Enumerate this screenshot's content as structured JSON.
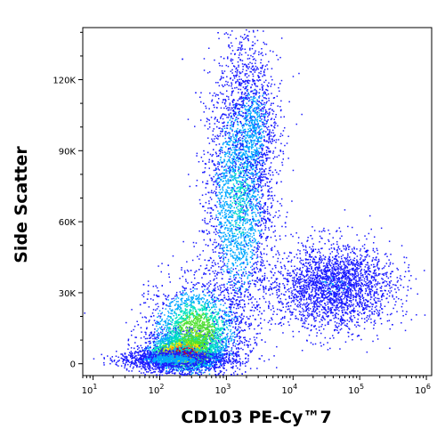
{
  "chart_data": {
    "type": "scatter",
    "style": "pseudocolor density dot plot",
    "xlabel": "CD103 PE-Cy™7",
    "ylabel": "Side Scatter",
    "x_scale": "log",
    "x_range": [
      7,
      1200000
    ],
    "y_scale": "linear",
    "y_range": [
      -5000,
      142000
    ],
    "x_ticks": [
      {
        "value": 10,
        "base": "10",
        "exp": "1"
      },
      {
        "value": 100,
        "base": "10",
        "exp": "2"
      },
      {
        "value": 1000,
        "base": "10",
        "exp": "3"
      },
      {
        "value": 10000,
        "base": "10",
        "exp": "4"
      },
      {
        "value": 100000,
        "base": "10",
        "exp": "5"
      },
      {
        "value": 1000000,
        "base": "10",
        "exp": "6"
      }
    ],
    "y_ticks": [
      {
        "value": 0,
        "label": "0"
      },
      {
        "value": 30000,
        "label": "30K"
      },
      {
        "value": 60000,
        "label": "60K"
      },
      {
        "value": 90000,
        "label": "90K"
      },
      {
        "value": 120000,
        "label": "120K"
      }
    ],
    "density_colors": [
      "#1a1aff",
      "#00a8ff",
      "#00e0c0",
      "#50e030",
      "#e8e800",
      "#ff8800",
      "#e00000"
    ],
    "populations": [
      {
        "x_center": 230,
        "y_center": 5000,
        "x_spread_decades": 0.28,
        "y_spread": 4000,
        "count": 2600,
        "density": 1.0
      },
      {
        "x_center": 350,
        "y_center": 14000,
        "x_spread_decades": 0.35,
        "y_spread": 10000,
        "count": 2400,
        "density": 0.55
      },
      {
        "x_center": 1500,
        "y_center": 70000,
        "x_spread_decades": 0.25,
        "y_spread": 28000,
        "count": 2800,
        "density": 0.3
      },
      {
        "x_center": 2500,
        "y_center": 100000,
        "x_spread_decades": 0.18,
        "y_spread": 18000,
        "count": 1000,
        "density": 0.2
      },
      {
        "x_center": 40000,
        "y_center": 33000,
        "x_spread_decades": 0.45,
        "y_spread": 9000,
        "count": 2400,
        "density": 0.12
      },
      {
        "x_center": 150,
        "y_center": 2000,
        "x_spread_decades": 0.4,
        "y_spread": 2000,
        "count": 1200,
        "density": 0.2
      }
    ]
  }
}
